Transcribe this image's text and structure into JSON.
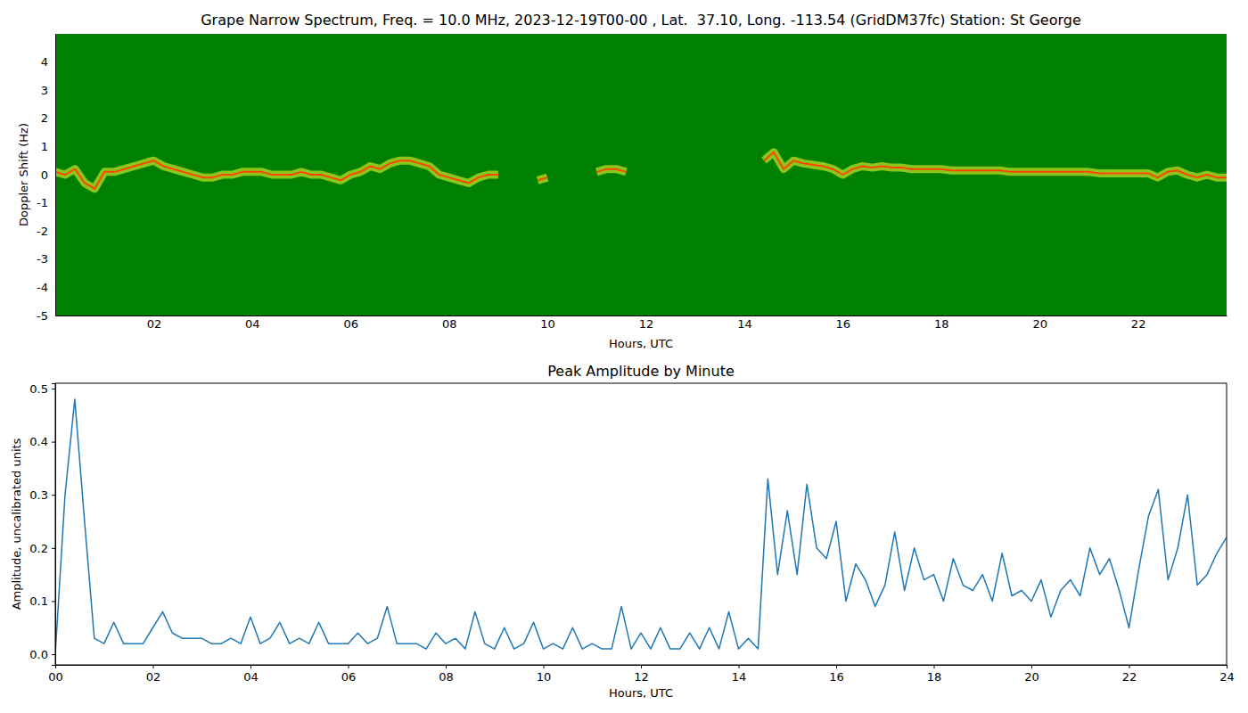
{
  "chart_data": [
    {
      "type": "line",
      "title": "Grape Narrow Spectrum, Freq. = 10.0 MHz, 2023-12-19T00-00 , Lat.  37.10, Long. -113.54 (GridDM37fc) Station: St George",
      "x_label": "Hours, UTC",
      "y_label": "Doppler Shift (Hz)",
      "x": [
        0,
        0.2,
        0.4,
        0.6,
        0.8,
        1.0,
        1.2,
        1.4,
        1.6,
        1.8,
        2.0,
        2.2,
        2.4,
        2.6,
        2.8,
        3.0,
        3.2,
        3.4,
        3.6,
        3.8,
        4.0,
        4.2,
        4.4,
        4.6,
        4.8,
        5.0,
        5.2,
        5.4,
        5.6,
        5.8,
        6.0,
        6.2,
        6.4,
        6.6,
        6.8,
        7.0,
        7.2,
        7.4,
        7.6,
        7.8,
        8.0,
        8.2,
        8.4,
        8.6,
        8.8,
        9.0,
        9.2,
        9.4,
        9.6,
        9.8,
        10.0,
        10.2,
        10.4,
        10.6,
        10.8,
        11.0,
        11.2,
        11.4,
        11.6,
        11.8,
        12.0,
        12.2,
        12.4,
        12.6,
        12.8,
        13.0,
        13.2,
        13.4,
        13.6,
        13.8,
        14.0,
        14.2,
        14.4,
        14.6,
        14.8,
        15.0,
        15.2,
        15.4,
        15.6,
        15.8,
        16.0,
        16.2,
        16.4,
        16.6,
        16.8,
        17.0,
        17.2,
        17.4,
        17.6,
        17.8,
        18.0,
        18.2,
        18.4,
        18.6,
        18.8,
        19.0,
        19.2,
        19.4,
        19.6,
        19.8,
        20.0,
        20.2,
        20.4,
        20.6,
        20.8,
        21.0,
        21.2,
        21.4,
        21.6,
        21.8,
        22.0,
        22.2,
        22.4,
        22.6,
        22.8,
        23.0,
        23.2,
        23.4,
        23.6,
        23.8
      ],
      "series": [
        {
          "color": "#ff4500",
          "values": [
            0.1,
            0.0,
            0.2,
            -0.3,
            -0.5,
            0.1,
            0.1,
            0.2,
            0.3,
            0.4,
            0.5,
            0.3,
            0.2,
            0.1,
            0.0,
            -0.1,
            -0.1,
            0.0,
            0.0,
            0.1,
            0.1,
            0.1,
            0.0,
            0.0,
            0.0,
            0.1,
            0.0,
            0.0,
            -0.1,
            -0.2,
            0.0,
            0.1,
            0.3,
            0.2,
            0.4,
            0.5,
            0.5,
            0.4,
            0.3,
            0.0,
            -0.1,
            -0.2,
            -0.3,
            -0.1,
            0.0,
            0.0,
            null,
            null,
            null,
            -0.2,
            -0.1,
            null,
            null,
            null,
            null,
            0.1,
            0.2,
            0.2,
            0.1,
            null,
            null,
            null,
            null,
            null,
            null,
            null,
            null,
            null,
            null,
            null,
            null,
            null,
            0.5,
            0.8,
            0.2,
            0.5,
            0.4,
            0.35,
            0.3,
            0.2,
            0.0,
            0.2,
            0.3,
            0.25,
            0.3,
            0.25,
            0.25,
            0.2,
            0.2,
            0.2,
            0.2,
            0.15,
            0.15,
            0.15,
            0.15,
            0.15,
            0.15,
            0.1,
            0.1,
            0.1,
            0.1,
            0.1,
            0.1,
            0.1,
            0.1,
            0.1,
            0.05,
            0.05,
            0.05,
            0.05,
            0.05,
            0.05,
            -0.1,
            0.1,
            0.15,
            0.0,
            -0.1,
            0.0,
            -0.1,
            -0.1
          ]
        }
      ],
      "xlim": [
        0,
        23.8
      ],
      "ylim": [
        -5,
        5
      ],
      "xticks": [
        {
          "value": 2,
          "label": "02"
        },
        {
          "value": 4,
          "label": "04"
        },
        {
          "value": 6,
          "label": "06"
        },
        {
          "value": 8,
          "label": "08"
        },
        {
          "value": 10,
          "label": "10"
        },
        {
          "value": 12,
          "label": "12"
        },
        {
          "value": 14,
          "label": "14"
        },
        {
          "value": 16,
          "label": "16"
        },
        {
          "value": 18,
          "label": "18"
        },
        {
          "value": 20,
          "label": "20"
        },
        {
          "value": 22,
          "label": "22"
        }
      ],
      "yticks": [
        -5,
        -4,
        -3,
        -2,
        -1,
        0,
        1,
        2,
        3,
        4
      ]
    },
    {
      "type": "line",
      "title": "Peak Amplitude by Minute",
      "x_label": "Hours, UTC",
      "y_label": "Amplitude, uncalibrated units",
      "x": [
        0,
        0.2,
        0.4,
        0.6,
        0.8,
        1.0,
        1.2,
        1.4,
        1.6,
        1.8,
        2.0,
        2.2,
        2.4,
        2.6,
        2.8,
        3.0,
        3.2,
        3.4,
        3.6,
        3.8,
        4.0,
        4.2,
        4.4,
        4.6,
        4.8,
        5.0,
        5.2,
        5.4,
        5.6,
        5.8,
        6.0,
        6.2,
        6.4,
        6.6,
        6.8,
        7.0,
        7.2,
        7.4,
        7.6,
        7.8,
        8.0,
        8.2,
        8.4,
        8.6,
        8.8,
        9.0,
        9.2,
        9.4,
        9.6,
        9.8,
        10.0,
        10.2,
        10.4,
        10.6,
        10.8,
        11.0,
        11.2,
        11.4,
        11.6,
        11.8,
        12.0,
        12.2,
        12.4,
        12.6,
        12.8,
        13.0,
        13.2,
        13.4,
        13.6,
        13.8,
        14.0,
        14.2,
        14.4,
        14.6,
        14.8,
        15.0,
        15.2,
        15.4,
        15.6,
        15.8,
        16.0,
        16.2,
        16.4,
        16.6,
        16.8,
        17.0,
        17.2,
        17.4,
        17.6,
        17.8,
        18.0,
        18.2,
        18.4,
        18.6,
        18.8,
        19.0,
        19.2,
        19.4,
        19.6,
        19.8,
        20.0,
        20.2,
        20.4,
        20.6,
        20.8,
        21.0,
        21.2,
        21.4,
        21.6,
        21.8,
        22.0,
        22.2,
        22.4,
        22.6,
        22.8,
        23.0,
        23.2,
        23.4,
        23.6,
        23.8,
        24.0
      ],
      "series": [
        {
          "color": "#1f77b4",
          "values": [
            0.0,
            0.3,
            0.48,
            0.25,
            0.03,
            0.02,
            0.06,
            0.02,
            0.02,
            0.02,
            0.05,
            0.08,
            0.04,
            0.03,
            0.03,
            0.03,
            0.02,
            0.02,
            0.03,
            0.02,
            0.07,
            0.02,
            0.03,
            0.06,
            0.02,
            0.03,
            0.02,
            0.06,
            0.02,
            0.02,
            0.02,
            0.04,
            0.02,
            0.03,
            0.09,
            0.02,
            0.02,
            0.02,
            0.01,
            0.04,
            0.02,
            0.03,
            0.01,
            0.08,
            0.02,
            0.01,
            0.05,
            0.01,
            0.02,
            0.06,
            0.01,
            0.02,
            0.01,
            0.05,
            0.01,
            0.02,
            0.01,
            0.01,
            0.09,
            0.01,
            0.04,
            0.01,
            0.05,
            0.01,
            0.01,
            0.04,
            0.01,
            0.05,
            0.01,
            0.08,
            0.01,
            0.03,
            0.01,
            0.33,
            0.15,
            0.27,
            0.15,
            0.32,
            0.2,
            0.18,
            0.25,
            0.1,
            0.17,
            0.14,
            0.09,
            0.13,
            0.23,
            0.12,
            0.2,
            0.14,
            0.15,
            0.1,
            0.18,
            0.13,
            0.12,
            0.15,
            0.1,
            0.19,
            0.11,
            0.12,
            0.1,
            0.14,
            0.07,
            0.12,
            0.14,
            0.11,
            0.2,
            0.15,
            0.18,
            0.12,
            0.05,
            0.16,
            0.26,
            0.31,
            0.14,
            0.2,
            0.3,
            0.13,
            0.15,
            0.19,
            0.22
          ]
        }
      ],
      "xlim": [
        0,
        24
      ],
      "ylim": [
        -0.02,
        0.51
      ],
      "xticks": [
        {
          "value": 0,
          "label": "00"
        },
        {
          "value": 2,
          "label": "02"
        },
        {
          "value": 4,
          "label": "04"
        },
        {
          "value": 6,
          "label": "06"
        },
        {
          "value": 8,
          "label": "08"
        },
        {
          "value": 10,
          "label": "10"
        },
        {
          "value": 12,
          "label": "12"
        },
        {
          "value": 14,
          "label": "14"
        },
        {
          "value": 16,
          "label": "16"
        },
        {
          "value": 18,
          "label": "18"
        },
        {
          "value": 20,
          "label": "20"
        },
        {
          "value": 22,
          "label": "22"
        },
        {
          "value": 24,
          "label": "24"
        }
      ],
      "yticks": [
        {
          "value": 0,
          "label": "0.0"
        },
        0.1,
        0.2,
        0.3,
        0.4,
        0.5
      ]
    }
  ]
}
